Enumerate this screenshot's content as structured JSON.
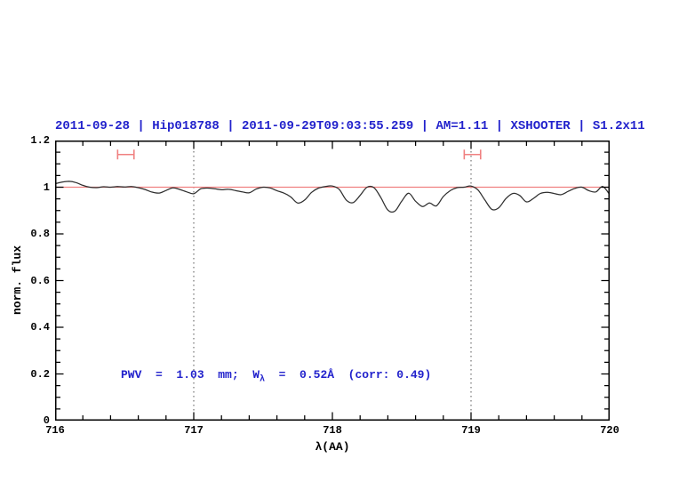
{
  "title": {
    "text": "2011-09-28 | Hip018788 | 2011-09-29T09:03:55.259 | AM=1.11 | XSHOOTER | S1.2x11",
    "color": "#2222cc"
  },
  "annotation": {
    "part1": "PWV  =  1.03  mm;  W",
    "sub": "λ",
    "part2": "  =  0.52Å  (corr: 0.49)",
    "color": "#2222cc"
  },
  "axes": {
    "xlabel": "λ(AA)",
    "ylabel": "norm. flux",
    "x_ticks": [
      "716",
      "717",
      "718",
      "719",
      "720"
    ],
    "y_ticks": [
      "1.2",
      "1",
      "0.8",
      "0.6",
      "0.4",
      "0.2",
      "0"
    ]
  },
  "chart_data": {
    "type": "line",
    "title": "2011-09-28 | Hip018788 | 2011-09-29T09:03:55.259 | AM=1.11 | XSHOOTER | S1.2x11",
    "xlabel": "λ(AA)",
    "ylabel": "norm. flux",
    "xlim": [
      716,
      720
    ],
    "ylim": [
      0,
      1.2
    ],
    "grid": "off",
    "legend": "none",
    "x_major_ticks": [
      716,
      717,
      718,
      719,
      720
    ],
    "x_minor_step": 0.2,
    "y_major_ticks": [
      0,
      0.2,
      0.4,
      0.6,
      0.8,
      1.0,
      1.2
    ],
    "y_minor_step": 0.05,
    "dotted_vlines": {
      "x": [
        717,
        719
      ],
      "color": "#555555",
      "style": "dotted"
    },
    "reference_hline": {
      "y": 1.0,
      "color": "#f08080"
    },
    "range_markers": {
      "color": "#f08080",
      "items": [
        {
          "x_center": 716.51,
          "x_halfwidth": 0.059,
          "y": 1.14
        },
        {
          "x_center": 719.01,
          "x_halfwidth": 0.059,
          "y": 1.14
        }
      ]
    },
    "series": [
      {
        "name": "normalized telluric spectrum",
        "color": "#2e2e2e",
        "x_start": 716.0,
        "x_step": 0.05,
        "flux": [
          1.015,
          1.022,
          1.025,
          1.02,
          1.008,
          1.0,
          0.998,
          1.002,
          1.0,
          1.003,
          1.001,
          1.003,
          0.998,
          0.99,
          0.979,
          0.975,
          0.986,
          0.997,
          0.99,
          0.98,
          0.972,
          0.993,
          0.996,
          0.993,
          0.989,
          0.991,
          0.986,
          0.98,
          0.976,
          0.992,
          1.0,
          0.997,
          0.985,
          0.975,
          0.958,
          0.932,
          0.945,
          0.978,
          0.996,
          1.003,
          1.005,
          0.99,
          0.945,
          0.934,
          0.965,
          1.0,
          0.998,
          0.955,
          0.902,
          0.897,
          0.94,
          0.974,
          0.94,
          0.917,
          0.932,
          0.92,
          0.96,
          0.985,
          0.998,
          1.0,
          1.005,
          0.988,
          0.945,
          0.905,
          0.912,
          0.95,
          0.973,
          0.965,
          0.937,
          0.952,
          0.973,
          0.978,
          0.973,
          0.968,
          0.982,
          0.995,
          1.0,
          0.985,
          0.98,
          1.003,
          0.968
        ]
      }
    ],
    "frame_color": "#000000"
  }
}
